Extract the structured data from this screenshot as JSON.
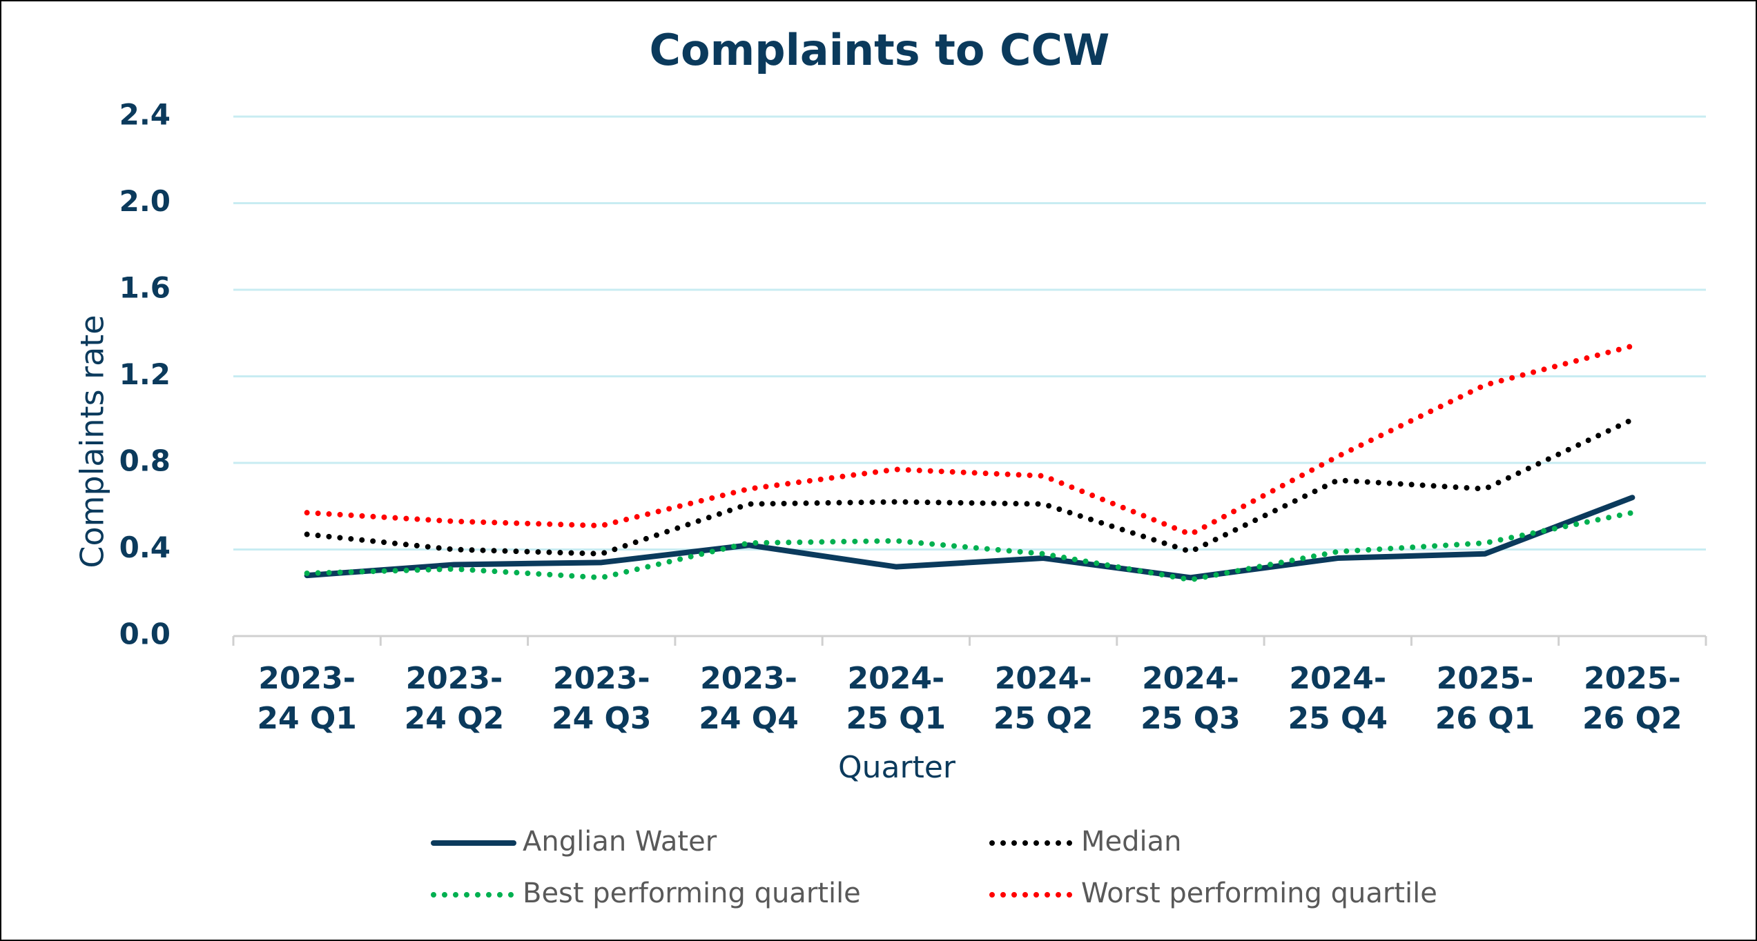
{
  "chart_data": {
    "type": "line",
    "title": "Complaints to CCW",
    "x_label": "Quarter",
    "y_label": "Complaints rate",
    "categories": [
      "2023-24 Q1",
      "2023-24 Q2",
      "2023-24 Q3",
      "2023-24 Q4",
      "2024-25 Q1",
      "2024-25 Q2",
      "2024-25 Q3",
      "2024-25 Q4",
      "2025-26 Q1",
      "2025-26 Q2"
    ],
    "series": [
      {
        "name": "Anglian Water",
        "color": "#0b3a5c",
        "style": "solid",
        "values": [
          0.28,
          0.33,
          0.34,
          0.42,
          0.32,
          0.36,
          0.27,
          0.36,
          0.38,
          0.64
        ]
      },
      {
        "name": "Median",
        "color": "#000000",
        "style": "dotted",
        "values": [
          0.47,
          0.4,
          0.38,
          0.61,
          0.62,
          0.61,
          0.39,
          0.72,
          0.68,
          1.0
        ]
      },
      {
        "name": "Best performing quartile",
        "color": "#00b050",
        "style": "dotted",
        "values": [
          0.29,
          0.31,
          0.27,
          0.43,
          0.44,
          0.38,
          0.26,
          0.39,
          0.43,
          0.57
        ]
      },
      {
        "name": "Worst performing quartile",
        "color": "#ff0000",
        "style": "dotted",
        "values": [
          0.57,
          0.53,
          0.51,
          0.68,
          0.77,
          0.74,
          0.47,
          0.83,
          1.16,
          1.34
        ]
      }
    ],
    "ylim": [
      0,
      2.4
    ],
    "yticks": [
      {
        "value": 0,
        "label": "0.0"
      },
      0.4,
      0.8,
      1.2,
      1.6,
      {
        "value": 2,
        "label": "2.0"
      },
      2.4
    ],
    "grid": true,
    "legend": "bottom"
  }
}
